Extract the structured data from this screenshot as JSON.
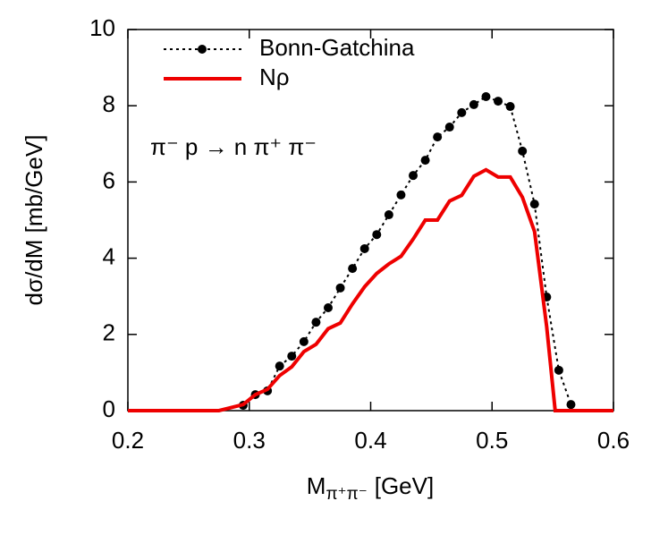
{
  "chart_data": {
    "type": "line",
    "y_label": "dσ/dM [mb/GeV]",
    "x_label": {
      "main": "M",
      "subscript": "π⁺π⁻",
      "unit": "[GeV]"
    },
    "annotation": "π⁻ p → n π⁺ π⁻",
    "xlim": [
      0.2,
      0.6
    ],
    "xticks": [
      0.2,
      0.3,
      0.4,
      0.5,
      0.6
    ],
    "ylim": [
      0,
      10
    ],
    "yticks": [
      0,
      2,
      4,
      6,
      8,
      10
    ],
    "legend": "top-left",
    "series": [
      {
        "name": "Bonn-Gatchina",
        "color": "#000000",
        "style": "dotted-markers",
        "x": [
          0.295,
          0.305,
          0.315,
          0.325,
          0.335,
          0.345,
          0.355,
          0.365,
          0.375,
          0.385,
          0.395,
          0.405,
          0.415,
          0.425,
          0.435,
          0.445,
          0.455,
          0.465,
          0.475,
          0.485,
          0.495,
          0.505,
          0.515,
          0.525,
          0.535,
          0.545,
          0.555,
          0.565
        ],
        "values": [
          0.14,
          0.42,
          0.52,
          1.17,
          1.43,
          1.81,
          2.32,
          2.7,
          3.22,
          3.73,
          4.25,
          4.62,
          5.14,
          5.66,
          6.17,
          6.57,
          7.18,
          7.44,
          7.82,
          8.03,
          8.24,
          8.12,
          7.98,
          6.81,
          5.42,
          2.98,
          1.06,
          0.16
        ]
      },
      {
        "name": "Nρ",
        "color": "#ee0000",
        "style": "solid",
        "x": [
          0.2,
          0.275,
          0.295,
          0.305,
          0.315,
          0.325,
          0.335,
          0.345,
          0.355,
          0.365,
          0.375,
          0.385,
          0.395,
          0.405,
          0.415,
          0.425,
          0.435,
          0.445,
          0.455,
          0.465,
          0.475,
          0.485,
          0.495,
          0.505,
          0.515,
          0.525,
          0.535,
          0.545,
          0.552,
          0.6
        ],
        "values": [
          0,
          0,
          0.16,
          0.42,
          0.56,
          0.92,
          1.15,
          1.55,
          1.74,
          2.15,
          2.3,
          2.8,
          3.25,
          3.6,
          3.85,
          4.05,
          4.5,
          5.0,
          5.0,
          5.5,
          5.65,
          6.15,
          6.32,
          6.13,
          6.13,
          5.6,
          4.7,
          2.2,
          0,
          0
        ]
      }
    ]
  }
}
